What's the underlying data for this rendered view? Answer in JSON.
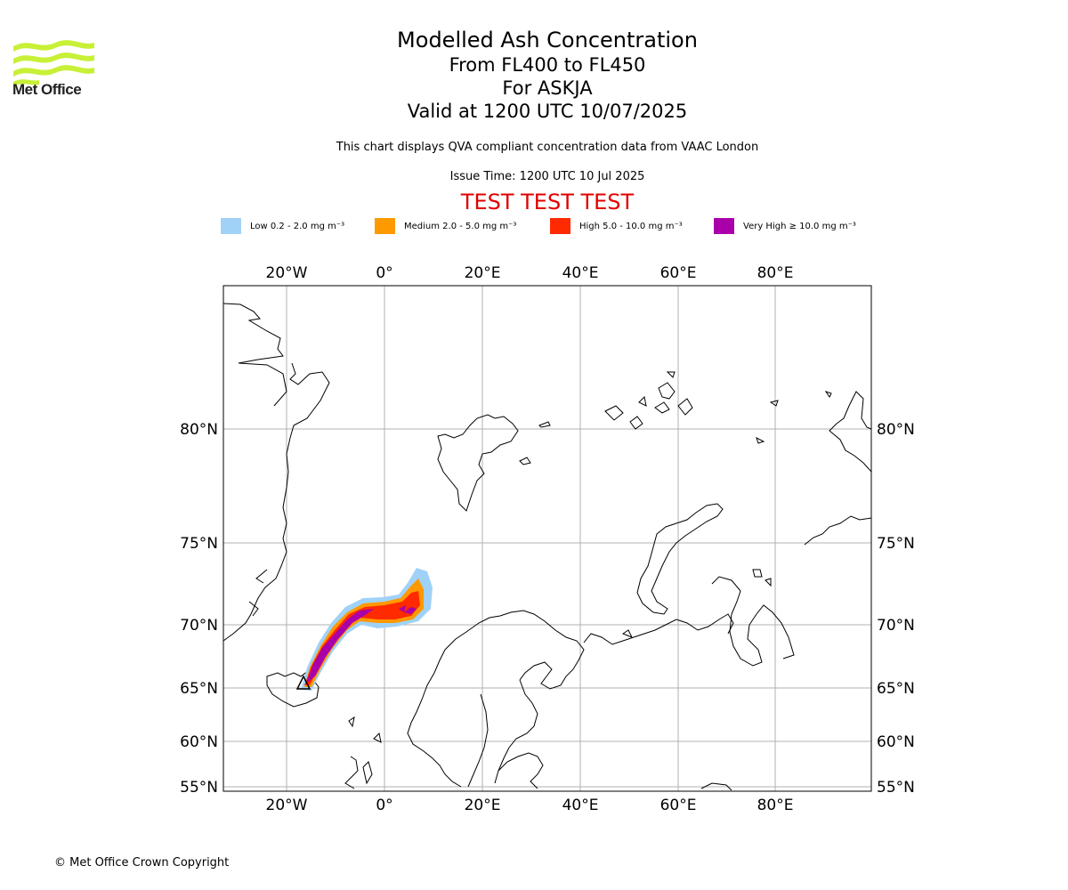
{
  "header": {
    "logo_name": "Met Office",
    "title": "Modelled Ash Concentration",
    "levels": "From FL400 to FL450",
    "volcano": "For ASKJA",
    "valid": "Valid at 1200 UTC 10/07/2025",
    "description": "This chart displays QVA compliant concentration data from VAAC London",
    "issue_time": "Issue Time: 1200 UTC 10 Jul 2025",
    "test_banner": "TEST TEST TEST"
  },
  "legend": [
    {
      "label": "Low 0.2 - 2.0 mg m⁻³",
      "color": "#a0d2f8"
    },
    {
      "label": "Medium 2.0 - 5.0 mg m⁻³",
      "color": "#ff9900"
    },
    {
      "label": "High 5.0 - 10.0 mg m⁻³",
      "color": "#ff2a00"
    },
    {
      "label": "Very High ≥ 10.0 mg m⁻³",
      "color": "#aa00aa"
    }
  ],
  "map": {
    "lon_ticks": [
      "20°W",
      "0°",
      "20°E",
      "40°E",
      "60°E",
      "80°E"
    ],
    "lat_ticks": [
      "80°N",
      "75°N",
      "70°N",
      "65°N",
      "60°N",
      "55°N"
    ],
    "border_color": "#000000",
    "grid_color": "#b0b0b0"
  },
  "footer": {
    "copyright": "© Met Office Crown Copyright"
  }
}
